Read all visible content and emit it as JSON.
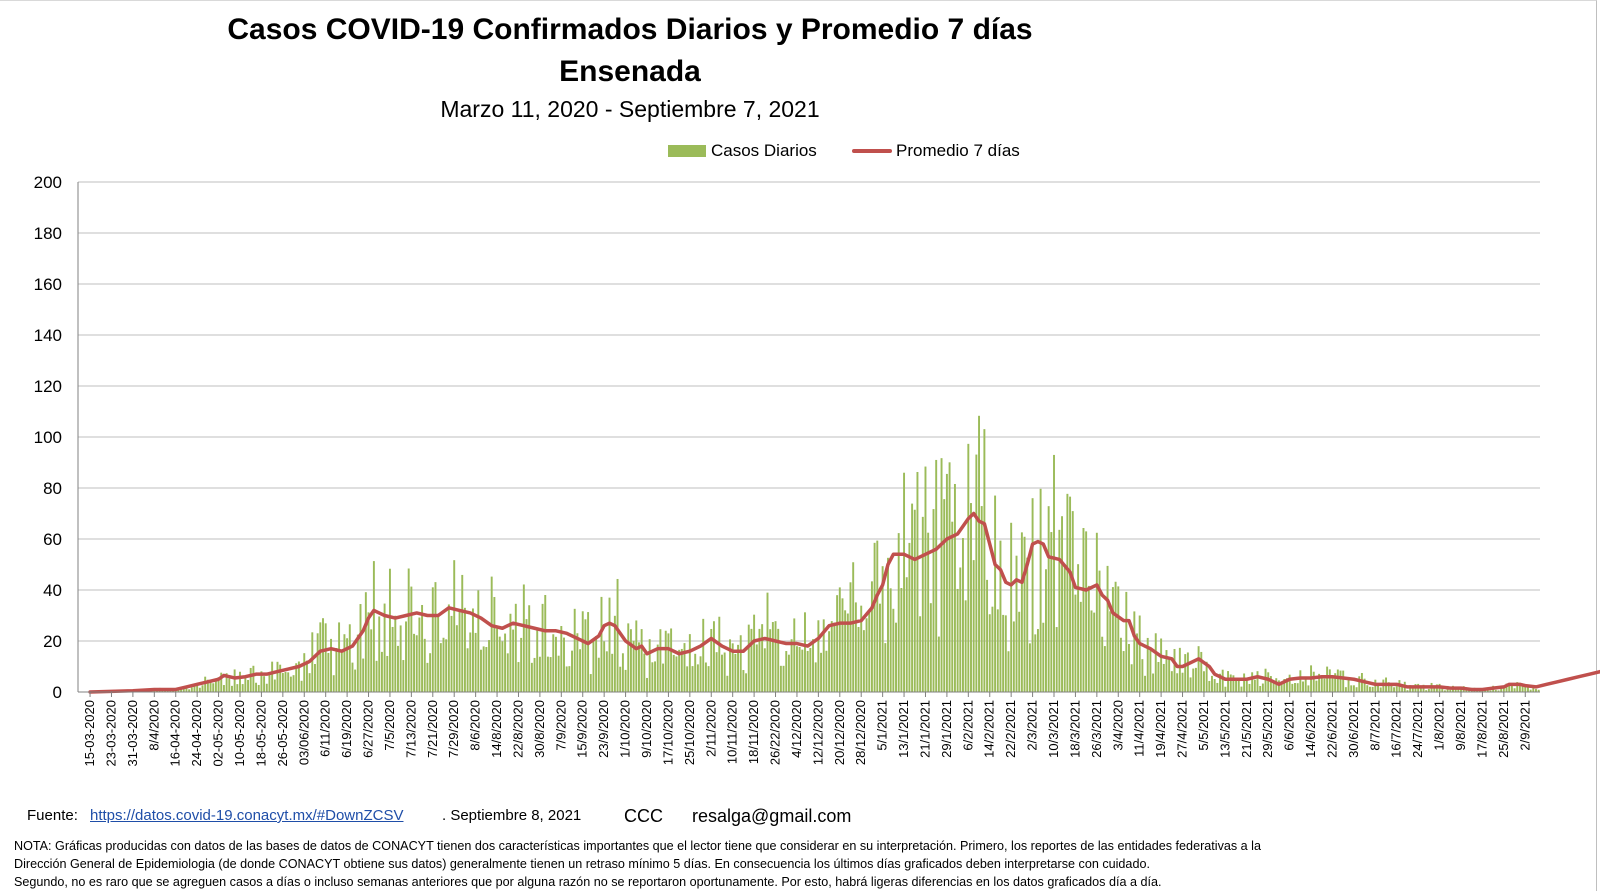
{
  "header": {
    "title_line1": "Casos COVID-19 Confirmados Diarios y Promedio 7 días",
    "title_line2": "Ensenada",
    "subtitle": "Marzo 11, 2020 - Septiembre 7, 2021"
  },
  "legend": {
    "bars_label": "Casos Diarios",
    "line_label": "Promedio 7 días"
  },
  "colors": {
    "bars": "#9bbb59",
    "line": "#c0504d",
    "grid": "#bfbfbf",
    "axis": "#808080"
  },
  "footer": {
    "source_label": "Fuente:",
    "source_link": "https://datos.covid-19.conacyt.mx/#DownZCSV",
    "source_date": ". Septiembre 8, 2021",
    "author": "CCC",
    "email": "resalga@gmail.com",
    "note_line1": "NOTA: Gráficas producidas con datos de las bases de datos de CONACYT tienen dos características importantes que el lector tiene que considerar en su interpretación. Primero, los reportes de las entidades federativas a la",
    "note_line2": "Dirección General de Epidemiologia (de donde CONACYT obtiene sus datos) generalmente tienen un retraso mínimo 5 días. En consecuencia los últimos días graficados deben interpretarse con cuidado.",
    "note_line3": "Segundo, no es raro que se agreguen casos a días o incluso semanas anteriores que por alguna razón no se reportaron oportunamente. Por esto, habrá ligeras diferencias en los datos graficados día a día."
  },
  "chart_data": {
    "type": "bar",
    "title": "Casos COVID-19 Confirmados Diarios y Promedio 7 días Ensenada",
    "subtitle": "Marzo 11, 2020 - Septiembre 7, 2021",
    "ylim": [
      0,
      200
    ],
    "yticks": [
      0,
      20,
      40,
      60,
      80,
      100,
      120,
      140,
      160,
      180,
      200
    ],
    "grid": true,
    "legend_position": "top",
    "x_start": "2020-03-11",
    "x_end": "2021-09-07",
    "x_tick_labels": [
      "15-03-2020",
      "23-03-2020",
      "31-03-2020",
      "8/4/2020",
      "16-04-2020",
      "24-04-2020",
      "02-05-2020",
      "10-05-2020",
      "18-05-2020",
      "26-05-2020",
      "03/06/2020",
      "6/11/2020",
      "6/19/2020",
      "6/27/2020",
      "7/5/2020",
      "7/13/2020",
      "7/21/2020",
      "7/29/2020",
      "8/6/2020",
      "14/8/2020",
      "22/8/2020",
      "30/8/2020",
      "7/9/2020",
      "15/9/2020",
      "23/9/2020",
      "1/10/2020",
      "9/10/2020",
      "17/10/2020",
      "25/10/2020",
      "2/11/2020",
      "10/11/2020",
      "18/11/2020",
      "26/22/2020",
      "4/12/2020",
      "12/12/2020",
      "20/12/2020",
      "28/12/2020",
      "5/1/2021",
      "13/1/2021",
      "21/1/2021",
      "29/1/2021",
      "6/2/2021",
      "14/2/2021",
      "22/2/2021",
      "2/3/2021",
      "10/3/2021",
      "18/3/2021",
      "26/3/2021",
      "3/4/2020",
      "11/4/2021",
      "19/4/2021",
      "27/4/2021",
      "5/5/2021",
      "13/5/2021",
      "21/5/2021",
      "29/5/2021",
      "6/6/2021",
      "14/6/2021",
      "22/6/2021",
      "30/6/2021",
      "8/7/2021",
      "16/7/2021",
      "24/7/2021",
      "1/8/2021",
      "9/8/2021",
      "17/8/2021",
      "25/8/2021",
      "2/9/2021"
    ],
    "series": [
      {
        "name": "Promedio 7 días",
        "kind": "line",
        "points": [
          [
            4,
            0
          ],
          [
            20,
            0.5
          ],
          [
            28,
            1
          ],
          [
            36,
            1
          ],
          [
            40,
            2
          ],
          [
            44,
            3
          ],
          [
            48,
            4
          ],
          [
            52,
            5
          ],
          [
            54,
            6.5
          ],
          [
            58,
            5.5
          ],
          [
            62,
            6
          ],
          [
            66,
            7
          ],
          [
            70,
            7
          ],
          [
            74,
            8
          ],
          [
            78,
            9
          ],
          [
            82,
            10
          ],
          [
            86,
            12
          ],
          [
            90,
            16
          ],
          [
            94,
            17
          ],
          [
            98,
            16
          ],
          [
            102,
            18
          ],
          [
            106,
            24
          ],
          [
            108,
            29
          ],
          [
            110,
            32
          ],
          [
            114,
            30
          ],
          [
            118,
            29
          ],
          [
            122,
            30
          ],
          [
            126,
            31
          ],
          [
            130,
            30
          ],
          [
            134,
            30
          ],
          [
            138,
            33
          ],
          [
            142,
            32
          ],
          [
            146,
            31
          ],
          [
            150,
            29
          ],
          [
            154,
            26
          ],
          [
            158,
            25
          ],
          [
            162,
            27
          ],
          [
            166,
            26
          ],
          [
            170,
            25
          ],
          [
            174,
            24
          ],
          [
            178,
            24
          ],
          [
            182,
            23
          ],
          [
            186,
            21
          ],
          [
            188,
            20
          ],
          [
            190,
            19
          ],
          [
            194,
            22
          ],
          [
            196,
            26
          ],
          [
            198,
            27
          ],
          [
            200,
            26
          ],
          [
            204,
            20
          ],
          [
            208,
            17
          ],
          [
            210,
            18
          ],
          [
            212,
            15
          ],
          [
            216,
            17
          ],
          [
            220,
            17
          ],
          [
            224,
            15
          ],
          [
            228,
            16
          ],
          [
            232,
            18
          ],
          [
            236,
            21
          ],
          [
            240,
            18
          ],
          [
            244,
            16
          ],
          [
            248,
            16
          ],
          [
            252,
            20
          ],
          [
            256,
            21
          ],
          [
            260,
            20
          ],
          [
            264,
            19
          ],
          [
            268,
            19
          ],
          [
            272,
            18
          ],
          [
            276,
            21
          ],
          [
            280,
            26
          ],
          [
            284,
            27
          ],
          [
            288,
            27
          ],
          [
            292,
            28
          ],
          [
            296,
            33
          ],
          [
            298,
            38
          ],
          [
            300,
            42
          ],
          [
            302,
            50
          ],
          [
            304,
            54
          ],
          [
            308,
            54
          ],
          [
            312,
            52
          ],
          [
            316,
            54
          ],
          [
            320,
            56
          ],
          [
            324,
            60
          ],
          [
            328,
            62
          ],
          [
            330,
            65
          ],
          [
            332,
            68
          ],
          [
            334,
            70
          ],
          [
            336,
            67
          ],
          [
            338,
            66
          ],
          [
            340,
            58
          ],
          [
            342,
            50
          ],
          [
            344,
            48
          ],
          [
            346,
            43
          ],
          [
            348,
            42
          ],
          [
            350,
            44
          ],
          [
            352,
            43
          ],
          [
            354,
            50
          ],
          [
            356,
            58
          ],
          [
            358,
            59
          ],
          [
            360,
            58
          ],
          [
            362,
            53
          ],
          [
            366,
            52
          ],
          [
            370,
            47
          ],
          [
            372,
            41
          ],
          [
            376,
            40
          ],
          [
            380,
            42
          ],
          [
            382,
            38
          ],
          [
            384,
            36
          ],
          [
            386,
            31
          ],
          [
            390,
            28
          ],
          [
            392,
            28
          ],
          [
            394,
            22
          ],
          [
            396,
            19
          ],
          [
            400,
            17
          ],
          [
            404,
            14
          ],
          [
            408,
            13
          ],
          [
            410,
            10
          ],
          [
            412,
            10
          ],
          [
            416,
            12
          ],
          [
            418,
            13
          ],
          [
            422,
            10
          ],
          [
            424,
            7
          ],
          [
            428,
            5
          ],
          [
            432,
            5
          ],
          [
            436,
            5
          ],
          [
            440,
            6
          ],
          [
            444,
            5
          ],
          [
            448,
            3
          ],
          [
            452,
            5
          ],
          [
            456,
            5.5
          ],
          [
            460,
            5.5
          ],
          [
            464,
            6
          ],
          [
            468,
            6
          ],
          [
            472,
            5.5
          ],
          [
            476,
            5
          ],
          [
            480,
            4
          ],
          [
            484,
            3
          ],
          [
            488,
            3
          ],
          [
            492,
            3
          ],
          [
            496,
            2
          ],
          [
            500,
            2
          ],
          [
            504,
            2
          ],
          [
            508,
            2
          ],
          [
            512,
            1.5
          ],
          [
            516,
            1.5
          ],
          [
            520,
            1
          ],
          [
            524,
            1
          ],
          [
            528,
            1.5
          ],
          [
            532,
            2
          ],
          [
            534,
            3
          ],
          [
            538,
            3
          ],
          [
            540,
            2.5
          ],
          [
            544,
            2
          ],
          [
            548,
            3
          ],
          [
            552,
            4
          ],
          [
            556,
            5
          ],
          [
            560,
            6
          ],
          [
            564,
            7
          ],
          [
            568,
            8
          ],
          [
            572,
            7
          ],
          [
            576,
            7
          ],
          [
            580,
            8
          ],
          [
            584,
            10
          ],
          [
            588,
            10
          ],
          [
            592,
            10
          ],
          [
            596,
            10
          ],
          [
            600,
            11
          ],
          [
            604,
            12
          ],
          [
            606,
            14
          ],
          [
            610,
            16
          ],
          [
            614,
            17
          ],
          [
            618,
            18
          ],
          [
            622,
            19
          ],
          [
            626,
            20
          ],
          [
            630,
            23
          ],
          [
            634,
            26
          ],
          [
            638,
            28
          ],
          [
            640,
            32
          ],
          [
            644,
            37
          ],
          [
            646,
            39
          ],
          [
            648,
            42
          ],
          [
            650,
            40
          ],
          [
            652,
            36
          ],
          [
            654,
            33
          ],
          [
            656,
            32
          ],
          [
            658,
            26
          ],
          [
            660,
            21
          ],
          [
            662,
            20
          ],
          [
            664,
            21
          ],
          [
            666,
            18
          ],
          [
            668,
            16
          ],
          [
            670,
            15
          ],
          [
            672,
            13
          ]
        ]
      }
    ]
  }
}
